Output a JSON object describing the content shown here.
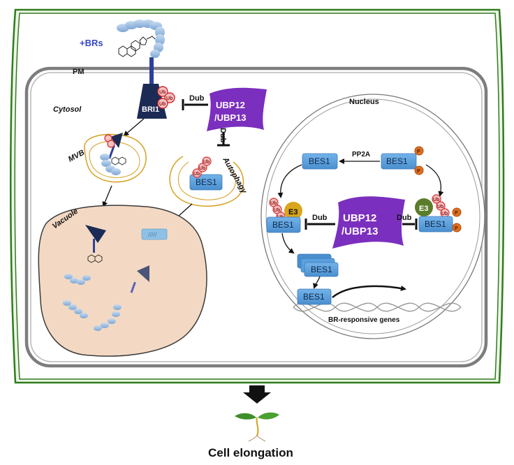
{
  "labels": {
    "brs": "+BRs",
    "pm": "PM",
    "cytosol": "Cytosol",
    "bri1": "BRI1",
    "mvb": "MVB",
    "vacuole": "Vacuole",
    "autophagy": "Autophagy",
    "nucleus": "Nucleus",
    "pp2a": "PP2A",
    "br_genes": "BR-responsive genes",
    "cell_elongation": "Cell elongation",
    "ub": "Ub",
    "p": "P",
    "e3": "E3"
  },
  "ubp": {
    "line1": "UBP12",
    "line2": "/UBP13"
  },
  "dub": "Dub",
  "bes1": "BES1",
  "vacuole_cargo": "/////",
  "colors": {
    "cell_wall": "#2f7d1a",
    "cell_wall_fill": "#eef4e9",
    "pm": "#808080",
    "bri1": "#1c2b55",
    "ubp": "#7b2fbe",
    "bes1": "#5aa0de",
    "vacuole": "#f3d9c3",
    "mvb": "#d4a020",
    "ub": "#e83a3a",
    "p": "#e07020",
    "e3_yellow": "#d8a51c",
    "e3_green": "#5a7d2b"
  }
}
